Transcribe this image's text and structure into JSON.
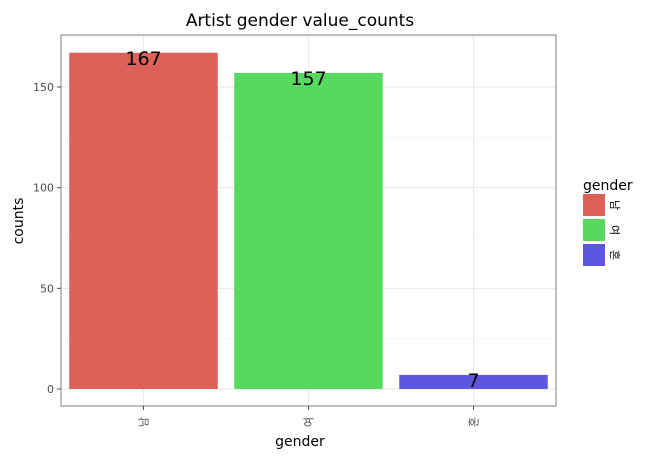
{
  "chart_data": {
    "type": "bar",
    "title": "Artist gender value_counts",
    "xlabel": "gender",
    "ylabel": "counts",
    "categories": [
      "남",
      "여",
      "혼"
    ],
    "values": [
      167,
      157,
      7
    ],
    "data_labels": [
      "167",
      "157",
      "7"
    ],
    "colors": [
      "#dc6158",
      "#55d95f",
      "#5f56df"
    ],
    "ylim": [
      0,
      175
    ],
    "yticks": [
      0,
      50,
      100,
      150
    ],
    "ytick_labels": [
      "0",
      "50",
      "100",
      "150"
    ],
    "grid": true,
    "legend": {
      "title": "gender",
      "placement": "right",
      "entries": [
        "남",
        "여",
        "혼"
      ]
    }
  }
}
